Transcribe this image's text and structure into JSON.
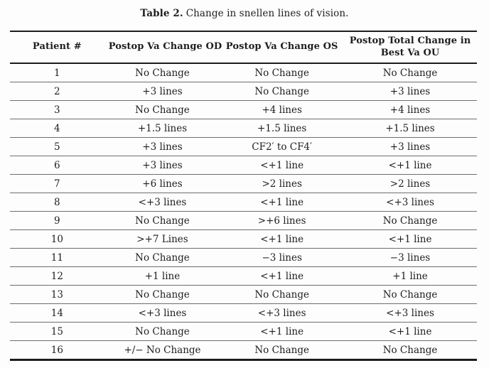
{
  "caption": {
    "label": "Table 2.",
    "text": "Change in snellen lines of vision."
  },
  "table": {
    "headers": [
      "Patient #",
      "Postop Va Change OD",
      "Postop Va Change OS",
      "Postop Total Change in Best Va OU"
    ],
    "rows": [
      [
        "1",
        "No Change",
        "No Change",
        "No Change"
      ],
      [
        "2",
        "+3 lines",
        "No Change",
        "+3 lines"
      ],
      [
        "3",
        "No Change",
        "+4 lines",
        "+4 lines"
      ],
      [
        "4",
        "+1.5 lines",
        "+1.5 lines",
        "+1.5 lines"
      ],
      [
        "5",
        "+3 lines",
        "CF2′ to CF4′",
        "+3 lines"
      ],
      [
        "6",
        "+3 lines",
        "<+1 line",
        "<+1 line"
      ],
      [
        "7",
        "+6 lines",
        ">2 lines",
        ">2 lines"
      ],
      [
        "8",
        "<+3 lines",
        "<+1 line",
        "<+3 lines"
      ],
      [
        "9",
        "No Change",
        ">+6 lines",
        "No Change"
      ],
      [
        "10",
        ">+7 Lines",
        "<+1 line",
        "<+1 line"
      ],
      [
        "11",
        "No Change",
        "−3 lines",
        "−3 lines"
      ],
      [
        "12",
        "+1 line",
        "<+1 line",
        "+1 line"
      ],
      [
        "13",
        "No Change",
        "No Change",
        "No Change"
      ],
      [
        "14",
        "<+3 lines",
        "<+3 lines",
        "<+3 lines"
      ],
      [
        "15",
        "No Change",
        "<+1 line",
        "<+1 line"
      ],
      [
        "16",
        "+/− No Change",
        "No Change",
        "No Change"
      ]
    ],
    "colors": {
      "thick_rule": "#1c1c1c",
      "thin_rule": "#6e6e6e",
      "text": "#1e1e1e",
      "background": "#fdfdfd"
    }
  }
}
